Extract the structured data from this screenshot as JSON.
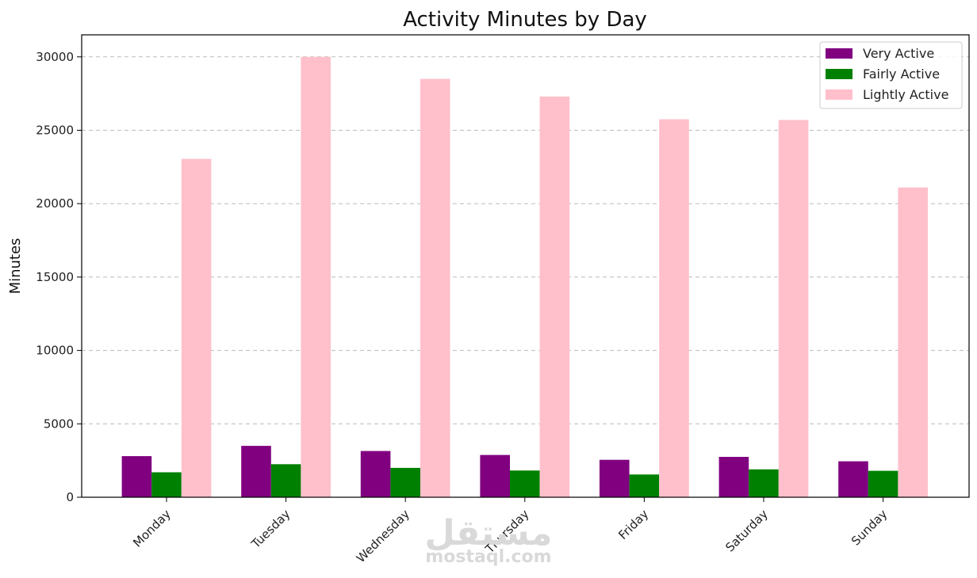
{
  "chart_data": {
    "type": "bar",
    "title": "Activity Minutes by Day",
    "xlabel": "",
    "ylabel": "Minutes",
    "categories": [
      "Monday",
      "Tuesday",
      "Wednesday",
      "Thursday",
      "Friday",
      "Saturday",
      "Sunday"
    ],
    "series": [
      {
        "name": "Very Active",
        "color": "#800080",
        "values": [
          2800,
          3500,
          3150,
          2880,
          2550,
          2750,
          2450
        ]
      },
      {
        "name": "Fairly Active",
        "color": "#008000",
        "values": [
          1700,
          2250,
          2000,
          1820,
          1550,
          1900,
          1800
        ]
      },
      {
        "name": "Lightly Active",
        "color": "#ffc0cb",
        "values": [
          23050,
          30000,
          28500,
          27300,
          25750,
          25700,
          21100
        ]
      }
    ],
    "ylim": [
      0,
      31500
    ],
    "yticks": [
      0,
      5000,
      10000,
      15000,
      20000,
      25000,
      30000
    ],
    "grid": "y-dashed",
    "legend_position": "top-right"
  },
  "watermark": {
    "arabic": "مستقل",
    "latin": "mostaql.com"
  }
}
